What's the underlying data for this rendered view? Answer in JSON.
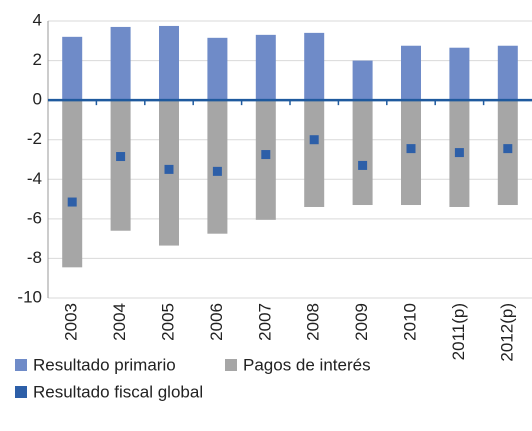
{
  "chart_data": {
    "type": "bar",
    "categories": [
      "2003",
      "2004",
      "2005",
      "2006",
      "2007",
      "2008",
      "2009",
      "2010",
      "2011(p)",
      "2012(p)"
    ],
    "series": [
      {
        "name": "Resultado primario",
        "color": "#6f8bc8",
        "values": [
          3.2,
          3.7,
          3.75,
          3.15,
          3.3,
          3.4,
          2.0,
          2.75,
          2.65,
          2.75
        ]
      },
      {
        "name": "Pagos de interés",
        "color": "#a6a6a6",
        "values": [
          -8.45,
          -6.6,
          -7.35,
          -6.75,
          -6.05,
          -5.4,
          -5.3,
          -5.3,
          -5.4,
          -5.3
        ]
      },
      {
        "name": "Resultado fiscal global",
        "color": "#2d5fa8",
        "values": [
          -5.15,
          -2.85,
          -3.5,
          -3.6,
          -2.75,
          -2.0,
          -3.3,
          -2.45,
          -2.65,
          -2.45
        ]
      }
    ],
    "ylim": [
      -10,
      4
    ],
    "yticks": [
      -10,
      -8,
      -6,
      -4,
      -2,
      0,
      2,
      4
    ],
    "grid": true
  }
}
